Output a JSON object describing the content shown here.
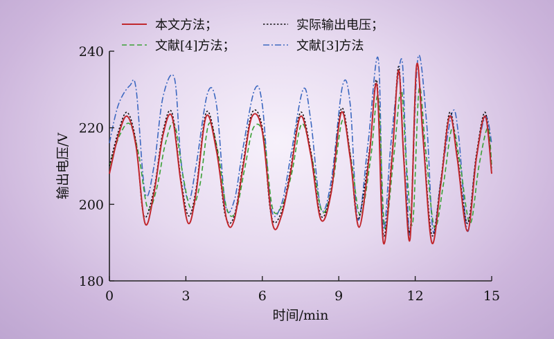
{
  "chart_data": {
    "type": "line",
    "title": "",
    "xlabel": "时间/min",
    "ylabel": "输出电压/V",
    "xlim": [
      0,
      15
    ],
    "ylim": [
      180,
      240
    ],
    "xticks": [
      0,
      3,
      6,
      9,
      12,
      15
    ],
    "yticks": [
      180,
      200,
      220,
      240
    ],
    "grid": false,
    "legend_position": "top",
    "series": [
      {
        "name": "本文方法；",
        "color": "#c0272d",
        "style": "solid",
        "x": [
          0,
          0.35,
          0.7,
          1.05,
          1.4,
          1.75,
          2.1,
          2.45,
          2.8,
          3.1,
          3.4,
          3.8,
          4.2,
          4.6,
          4.9,
          5.25,
          5.6,
          6.0,
          6.4,
          6.75,
          7.1,
          7.5,
          7.9,
          8.3,
          8.7,
          9.1,
          9.45,
          9.8,
          10.2,
          10.5,
          10.75,
          11.1,
          11.35,
          11.55,
          11.8,
          12.05,
          12.3,
          12.65,
          13.0,
          13.35,
          13.65,
          14.05,
          14.4,
          14.75,
          15.0
        ],
        "y": [
          208,
          218,
          223,
          215,
          195,
          203,
          218,
          223,
          206,
          195,
          203,
          223,
          214,
          196,
          196,
          210,
          223,
          219,
          195,
          197,
          208,
          223,
          213,
          196,
          203,
          224,
          212,
          194,
          213,
          231,
          190,
          213,
          235,
          212,
          191,
          236,
          218,
          190,
          205,
          223,
          212,
          193,
          212,
          223,
          208
        ]
      },
      {
        "name": "实际输出电压；",
        "color": "#111111",
        "style": "dotted",
        "x": [
          0,
          0.35,
          0.7,
          1.05,
          1.35,
          1.75,
          2.1,
          2.45,
          2.8,
          3.1,
          3.4,
          3.8,
          4.2,
          4.55,
          4.9,
          5.25,
          5.6,
          6.0,
          6.35,
          6.75,
          7.1,
          7.5,
          7.9,
          8.3,
          8.7,
          9.1,
          9.45,
          9.75,
          10.2,
          10.5,
          10.75,
          11.1,
          11.35,
          11.55,
          11.8,
          12.05,
          12.3,
          12.65,
          13.0,
          13.35,
          13.65,
          14.05,
          14.4,
          14.75,
          15.0
        ],
        "y": [
          210,
          219,
          224,
          216,
          197,
          204,
          219,
          224,
          207,
          197,
          204,
          224,
          215,
          197,
          197,
          211,
          224,
          220,
          197,
          198,
          209,
          224,
          214,
          197,
          204,
          225,
          213,
          196,
          214,
          232,
          192,
          214,
          236,
          213,
          193,
          236,
          219,
          192,
          206,
          224,
          213,
          195,
          213,
          224,
          209
        ]
      },
      {
        "name": "文献[4]方法；",
        "color": "#3aa035",
        "style": "dashed",
        "x": [
          0,
          0.4,
          0.8,
          1.15,
          1.5,
          1.85,
          2.2,
          2.55,
          2.9,
          3.2,
          3.55,
          3.9,
          4.25,
          4.6,
          4.95,
          5.3,
          5.65,
          6.05,
          6.4,
          6.8,
          7.15,
          7.55,
          7.95,
          8.35,
          8.75,
          9.15,
          9.5,
          9.85,
          10.25,
          10.55,
          10.8,
          11.15,
          11.45,
          11.65,
          11.9,
          12.15,
          12.4,
          12.75,
          13.1,
          13.45,
          13.75,
          14.15,
          14.5,
          14.85,
          15.0
        ],
        "y": [
          210,
          218,
          221,
          213,
          199,
          204,
          216,
          221,
          207,
          199,
          205,
          221,
          214,
          199,
          198,
          209,
          220,
          218,
          199,
          200,
          208,
          221,
          212,
          198,
          205,
          222,
          211,
          197,
          212,
          228,
          194,
          212,
          230,
          211,
          195,
          230,
          215,
          194,
          205,
          220,
          211,
          195,
          210,
          220,
          210
        ]
      },
      {
        "name": "文献[3]方法",
        "color": "#3c68c0",
        "style": "dashdot",
        "x": [
          0,
          0.35,
          0.8,
          1.05,
          1.4,
          1.75,
          2.1,
          2.55,
          2.8,
          3.1,
          3.4,
          3.85,
          4.2,
          4.55,
          4.9,
          5.25,
          5.7,
          6.0,
          6.35,
          6.75,
          7.1,
          7.6,
          7.9,
          8.3,
          8.7,
          9.15,
          9.45,
          9.75,
          10.15,
          10.55,
          10.75,
          11.05,
          11.45,
          11.6,
          11.8,
          12.1,
          12.45,
          12.7,
          13.0,
          13.45,
          13.7,
          14.05,
          14.35,
          14.75,
          15.0
        ],
        "y": [
          216,
          226,
          231,
          230,
          203,
          210,
          228,
          233,
          212,
          201,
          210,
          229,
          226,
          200,
          201,
          215,
          230,
          226,
          199,
          200,
          212,
          230,
          222,
          199,
          206,
          231,
          226,
          196,
          216,
          238,
          194,
          216,
          238,
          220,
          192,
          238,
          221,
          193,
          206,
          224,
          218,
          193,
          210,
          223,
          216
        ]
      }
    ]
  }
}
